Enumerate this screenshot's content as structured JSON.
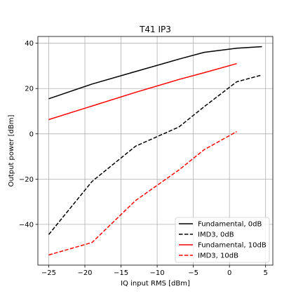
{
  "chart_data": {
    "type": "line",
    "title": "T41 IP3",
    "xlabel": "IQ input RMS [dBm]",
    "ylabel": "Output power [dBm]",
    "xlim": [
      -26.5,
      6
    ],
    "ylim": [
      -58,
      43
    ],
    "xticks": [
      -25,
      -20,
      -15,
      -10,
      -5,
      0,
      5
    ],
    "yticks": [
      -40,
      -20,
      0,
      20,
      40
    ],
    "grid": true,
    "legend_position": "lower-right",
    "series": [
      {
        "name": "Fundamental, 0dB",
        "color": "#000000",
        "dash": "solid",
        "x": [
          -25,
          -19,
          -13,
          -7,
          -3.5,
          1,
          4.5
        ],
        "y": [
          15.5,
          22,
          27.5,
          33,
          36,
          37.8,
          38.5
        ]
      },
      {
        "name": "IMD3, 0dB",
        "color": "#000000",
        "dash": "dashed",
        "x": [
          -25,
          -19,
          -13,
          -7,
          -3.5,
          1,
          4.5
        ],
        "y": [
          -44.5,
          -21,
          -5.5,
          3,
          12,
          23,
          26
        ]
      },
      {
        "name": "Fundamental, 10dB",
        "color": "#ff0000",
        "dash": "solid",
        "x": [
          -25,
          -19,
          -13,
          -7,
          -3.5,
          1
        ],
        "y": [
          6.3,
          12.3,
          18.3,
          24,
          27,
          31
        ]
      },
      {
        "name": "IMD3, 10dB",
        "color": "#ff0000",
        "dash": "dashed",
        "x": [
          -25,
          -19,
          -13,
          -7,
          -3.5,
          1
        ],
        "y": [
          -53.5,
          -48,
          -29.5,
          -16,
          -7,
          1
        ]
      }
    ]
  }
}
